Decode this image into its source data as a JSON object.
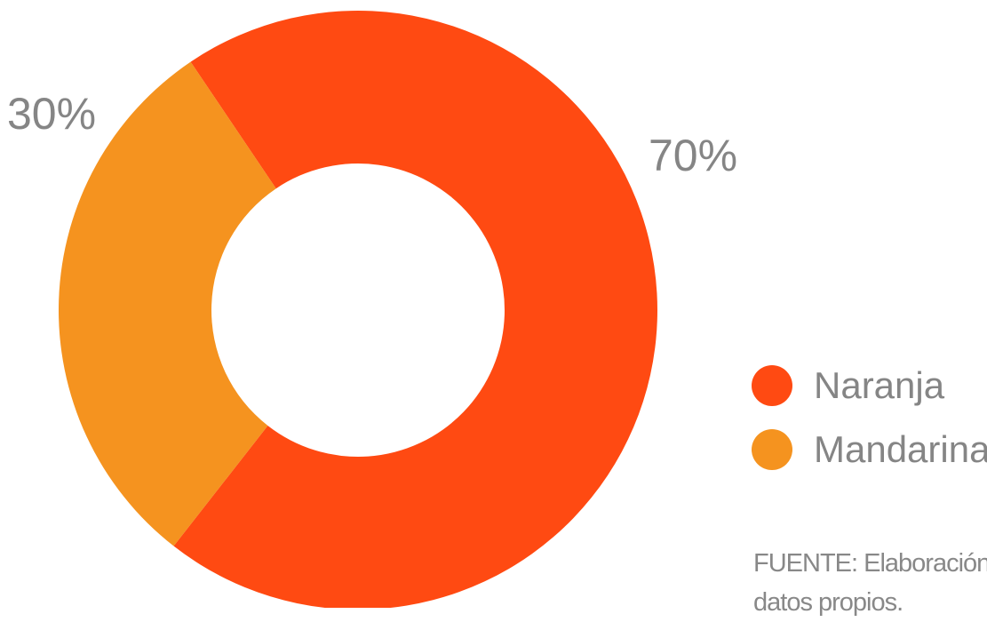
{
  "chart_data": {
    "type": "pie",
    "title": "",
    "donut": true,
    "slices": [
      {
        "label": "Naranja",
        "value": 70,
        "data_label": "70%",
        "color": "#FF4A12"
      },
      {
        "label": "Mandarina",
        "value": 30,
        "data_label": "30%",
        "color": "#F5931F"
      }
    ],
    "legend_placement": "right",
    "source_note_line1": "FUENTE: Elaboración",
    "source_note_line2": "datos propios."
  }
}
